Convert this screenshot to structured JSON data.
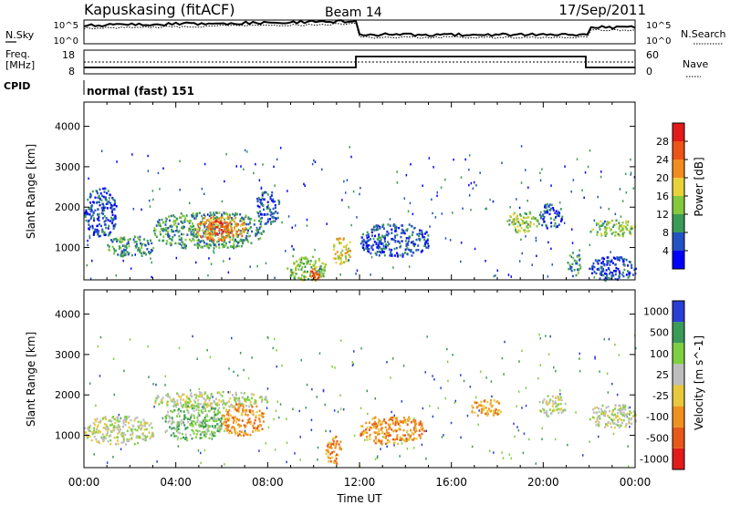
{
  "header": {
    "station": "Kapuskasing (fitACF)",
    "beam": "Beam 14",
    "date": "17/Sep/2011"
  },
  "noise_panel": {
    "left_label": "N.Sky",
    "right_label": "N.Search",
    "tick_top": "10^5",
    "tick_bottom": "10^0"
  },
  "freq_panel": {
    "left_label_1": "Freq.",
    "left_label_2": "[MHz]",
    "right_label": "Nave",
    "left_ticks": [
      "18",
      "8"
    ],
    "right_ticks": [
      "60",
      "0"
    ]
  },
  "cpid": {
    "label": "CPID",
    "value": "normal (fast) 151"
  },
  "power_panel": {
    "ylabel": "Slant Range [km]",
    "yticks": [
      "1000",
      "2000",
      "3000",
      "4000"
    ],
    "colorbar_label": "Power [dB]",
    "colorbar_ticks": [
      "4",
      "8",
      "12",
      "16",
      "20",
      "24",
      "28"
    ],
    "colors": [
      "#0000ff",
      "#2352c2",
      "#3a9a58",
      "#84c83c",
      "#e8d23a",
      "#f28c1e",
      "#ec5418",
      "#e31a1a"
    ]
  },
  "velocity_panel": {
    "ylabel": "Slant Range [km]",
    "yticks": [
      "1000",
      "2000",
      "3000",
      "4000"
    ],
    "colorbar_label": "Velocity [m s^-1]",
    "colorbar_ticks": [
      "1000",
      "500",
      "100",
      "25",
      "-25",
      "-100",
      "-500",
      "-1000"
    ],
    "colors": [
      "#2a3ed6",
      "#3a9a58",
      "#7ed040",
      "#bebebe",
      "#e8c83c",
      "#f0901e",
      "#e85818",
      "#e31a1a"
    ]
  },
  "xaxis": {
    "label": "Time UT",
    "ticks": [
      "00:00",
      "04:00",
      "08:00",
      "12:00",
      "16:00",
      "20:00",
      "00:00"
    ]
  },
  "chart_data": [
    {
      "type": "heatmap",
      "title": "Power",
      "xlabel": "Time UT",
      "ylabel": "Slant Range [km]",
      "xlim": [
        0,
        24
      ],
      "ylim": [
        200,
        4600
      ],
      "colorbar": {
        "label": "Power [dB]",
        "range": [
          0,
          32
        ],
        "ticks": [
          4,
          8,
          12,
          16,
          20,
          24,
          28
        ]
      },
      "regions": [
        {
          "t": [
            0.0,
            1.4
          ],
          "r": [
            1300,
            2500
          ],
          "level": 1
        },
        {
          "t": [
            1.0,
            3.0
          ],
          "r": [
            800,
            1300
          ],
          "level": 2
        },
        {
          "t": [
            3.0,
            7.8
          ],
          "r": [
            1000,
            1900
          ],
          "level": 2
        },
        {
          "t": [
            4.8,
            7.0
          ],
          "r": [
            1200,
            1800
          ],
          "level": 5
        },
        {
          "t": [
            5.3,
            6.3
          ],
          "r": [
            1300,
            1700
          ],
          "level": 6
        },
        {
          "t": [
            7.5,
            8.5
          ],
          "r": [
            1600,
            2400
          ],
          "level": 1
        },
        {
          "t": [
            8.8,
            10.5
          ],
          "r": [
            200,
            800
          ],
          "level": 3
        },
        {
          "t": [
            9.8,
            10.2
          ],
          "r": [
            200,
            500
          ],
          "level": 6
        },
        {
          "t": [
            10.8,
            11.6
          ],
          "r": [
            600,
            1300
          ],
          "level": 4
        },
        {
          "t": [
            12.0,
            15.0
          ],
          "r": [
            800,
            1600
          ],
          "level": 1
        },
        {
          "t": [
            18.4,
            19.8
          ],
          "r": [
            1400,
            1900
          ],
          "level": 3
        },
        {
          "t": [
            19.8,
            20.8
          ],
          "r": [
            1500,
            2100
          ],
          "level": 1
        },
        {
          "t": [
            21.0,
            21.6
          ],
          "r": [
            300,
            900
          ],
          "level": 2
        },
        {
          "t": [
            22.0,
            24.0
          ],
          "r": [
            1300,
            1700
          ],
          "level": 3
        },
        {
          "t": [
            22.0,
            24.0
          ],
          "r": [
            200,
            800
          ],
          "level": 1
        }
      ]
    },
    {
      "type": "heatmap",
      "title": "Velocity",
      "xlabel": "Time UT",
      "ylabel": "Slant Range [km]",
      "xlim": [
        0,
        24
      ],
      "ylim": [
        200,
        4600
      ],
      "colorbar": {
        "label": "Velocity [m s^-1]",
        "ticks": [
          1000,
          500,
          100,
          25,
          -25,
          -100,
          -500,
          -1000
        ]
      },
      "regions": [
        {
          "t": [
            0.0,
            3.0
          ],
          "r": [
            800,
            1500
          ],
          "level": 3
        },
        {
          "t": [
            3.0,
            8.0
          ],
          "r": [
            1700,
            2100
          ],
          "level": 3
        },
        {
          "t": [
            3.5,
            6.0
          ],
          "r": [
            900,
            1800
          ],
          "level": 2
        },
        {
          "t": [
            6.0,
            7.8
          ],
          "r": [
            1000,
            1800
          ],
          "level": 5
        },
        {
          "t": [
            12.0,
            14.8
          ],
          "r": [
            800,
            1500
          ],
          "level": 5
        },
        {
          "t": [
            16.8,
            18.2
          ],
          "r": [
            1500,
            1900
          ],
          "level": 5
        },
        {
          "t": [
            19.8,
            21.0
          ],
          "r": [
            1500,
            2000
          ],
          "level": 3
        },
        {
          "t": [
            22.0,
            24.0
          ],
          "r": [
            1200,
            1800
          ],
          "level": 3
        },
        {
          "t": [
            10.5,
            11.2
          ],
          "r": [
            300,
            1000
          ],
          "level": 5
        }
      ]
    }
  ]
}
